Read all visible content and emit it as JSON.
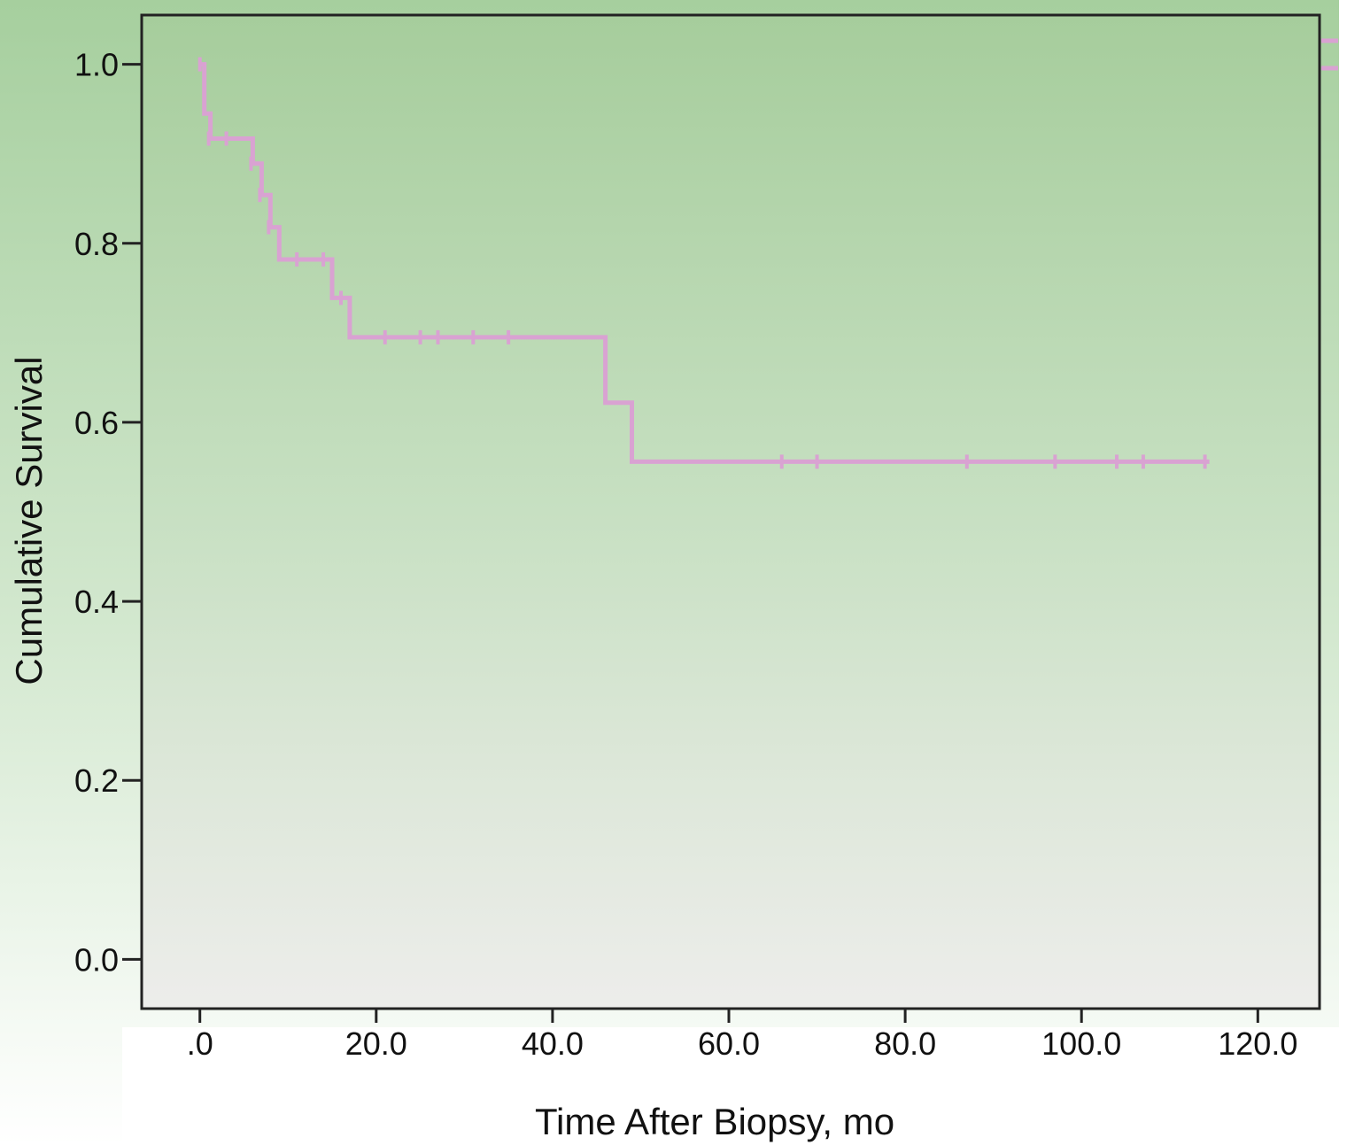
{
  "chart_data": {
    "type": "line",
    "title": "",
    "xlabel": "Time After Biopsy, mo",
    "ylabel": "Cumulative Survival",
    "xlim": [
      -6.6,
      127
    ],
    "ylim": [
      -0.055,
      1.055
    ],
    "x_ticks": [
      0,
      20,
      40,
      60,
      80,
      100,
      120
    ],
    "x_tick_labels": [
      ".0",
      "20.0",
      "40.0",
      "60.0",
      "80.0",
      "100.0",
      "120.0"
    ],
    "y_ticks": [
      0,
      0.2,
      0.4,
      0.6,
      0.8,
      1.0
    ],
    "y_tick_labels": [
      "0.0",
      "0.2",
      "0.4",
      "0.6",
      "0.8",
      "1.0"
    ],
    "grid": false,
    "legend": "none",
    "series": [
      {
        "color": "#d9a2d2",
        "step": [
          [
            0,
            1.0
          ],
          [
            0.5,
            0.945
          ],
          [
            1.2,
            0.917
          ],
          [
            6,
            0.889
          ],
          [
            7,
            0.854
          ],
          [
            8,
            0.818
          ],
          [
            9,
            0.782
          ],
          [
            15,
            0.739
          ],
          [
            17,
            0.695
          ],
          [
            46,
            0.622
          ],
          [
            49,
            0.556
          ],
          [
            114.5,
            0.556
          ]
        ],
        "censored": [
          [
            0,
            1.0
          ],
          [
            1,
            0.917
          ],
          [
            3,
            0.917
          ],
          [
            5.8,
            0.889
          ],
          [
            6.8,
            0.854
          ],
          [
            7.8,
            0.818
          ],
          [
            11,
            0.782
          ],
          [
            14,
            0.782
          ],
          [
            16,
            0.739
          ],
          [
            21,
            0.695
          ],
          [
            25,
            0.695
          ],
          [
            27,
            0.695
          ],
          [
            31,
            0.695
          ],
          [
            35,
            0.695
          ],
          [
            66,
            0.556
          ],
          [
            70,
            0.556
          ],
          [
            87,
            0.556
          ],
          [
            97,
            0.556
          ],
          [
            104,
            0.556
          ],
          [
            107,
            0.556
          ],
          [
            114,
            0.556
          ]
        ]
      }
    ]
  }
}
